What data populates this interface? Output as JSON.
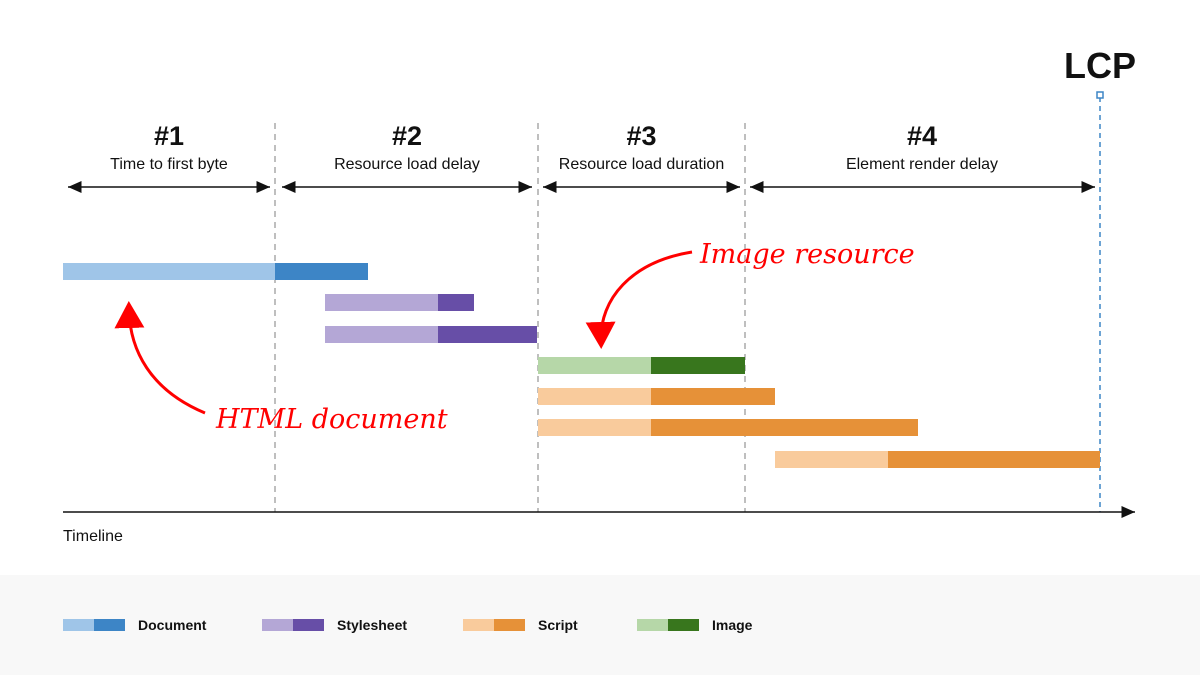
{
  "phases": [
    {
      "number": "#1",
      "label": "Time to first byte"
    },
    {
      "number": "#2",
      "label": "Resource load delay"
    },
    {
      "number": "#3",
      "label": "Resource load duration"
    },
    {
      "number": "#4",
      "label": "Element render delay"
    }
  ],
  "marker": "LCP",
  "axis_label": "Timeline",
  "annotations": {
    "image": "Image resource",
    "html": "HTML document"
  },
  "resource_types": {
    "document": {
      "label": "Document",
      "light": "#9fc5e8",
      "dark": "#3d85c6"
    },
    "stylesheet": {
      "label": "Stylesheet",
      "light": "#b4a7d6",
      "dark": "#674ea7"
    },
    "script": {
      "label": "Script",
      "light": "#f9cb9c",
      "dark": "#e69138"
    },
    "image": {
      "label": "Image",
      "light": "#b6d7a8",
      "dark": "#38761d"
    }
  },
  "requests": [
    "document",
    "stylesheet",
    "stylesheet",
    "image",
    "script",
    "script",
    "script"
  ],
  "legend": [
    "document",
    "stylesheet",
    "script",
    "image"
  ],
  "colors": {
    "annotation": "#ff0000",
    "lcp_line": "#3d85c6",
    "divider": "#aaaaaa"
  }
}
